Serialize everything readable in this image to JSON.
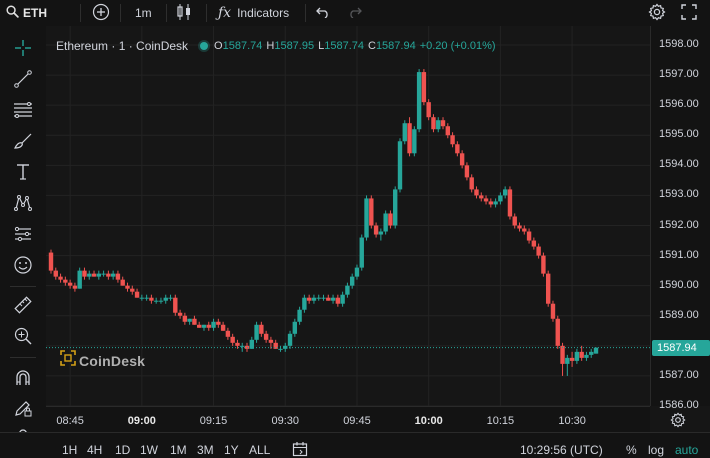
{
  "toolbar": {
    "symbol": "ETH",
    "interval": "1m",
    "indicators_label": "Indicators",
    "icons": [
      "search-icon",
      "add-icon",
      "candle-type-icon",
      "function-icon",
      "undo-icon",
      "redo-icon",
      "settings-icon",
      "fullscreen-icon"
    ]
  },
  "left_tools": [
    "crosshair-icon",
    "trend-line-icon",
    "fib-icon",
    "brush-icon",
    "text-icon",
    "pattern-icon",
    "forecast-icon",
    "emoji-icon",
    "ruler-icon",
    "zoom-in-icon",
    "magnet-icon",
    "lock-drawing-icon",
    "lock-icon"
  ],
  "legend": {
    "title": "Ethereum · 1 · CoinDesk",
    "o_label": "O",
    "o_value": "1587.74",
    "h_label": "H",
    "h_value": "1587.95",
    "l_label": "L",
    "l_value": "1587.74",
    "c_label": "C",
    "c_value": "1587.94",
    "change": "+0.20 (+0.01%)"
  },
  "watermark": {
    "text": "CoinDesk"
  },
  "price_scale": {
    "ticks": [
      "1598.00",
      "1597.00",
      "1596.00",
      "1595.00",
      "1594.00",
      "1593.00",
      "1592.00",
      "1591.00",
      "1590.00",
      "1589.00",
      "1588.00",
      "1587.00",
      "1586.00"
    ],
    "current": "1587.94"
  },
  "time_scale": {
    "ticks": [
      {
        "label": "08:45",
        "bold": false
      },
      {
        "label": "09:00",
        "bold": true
      },
      {
        "label": "09:15",
        "bold": false
      },
      {
        "label": "09:30",
        "bold": false
      },
      {
        "label": "09:45",
        "bold": false
      },
      {
        "label": "10:00",
        "bold": true
      },
      {
        "label": "10:15",
        "bold": false
      },
      {
        "label": "10:30",
        "bold": false
      }
    ]
  },
  "bottom": {
    "ranges": [
      "1H",
      "4H",
      "1D",
      "1W",
      "1M",
      "3M",
      "1Y",
      "ALL"
    ],
    "clock": "10:29:56 (UTC)",
    "percent_label": "%",
    "log_label": "log",
    "auto_label": "auto"
  },
  "colors": {
    "up": "#26a69a",
    "down": "#ef5350",
    "background": "#161616",
    "grid": "#232323"
  },
  "chart_data": {
    "type": "candlestick",
    "title": "Ethereum · 1 · CoinDesk",
    "interval": "1m",
    "x_unit": "time (UTC)",
    "ylim": [
      1585.9,
      1598.3
    ],
    "ohlc": [
      [
        1591.1,
        1591.2,
        1590.4,
        1590.5
      ],
      [
        1590.5,
        1590.6,
        1590.2,
        1590.3
      ],
      [
        1590.3,
        1590.4,
        1590.1,
        1590.2
      ],
      [
        1590.2,
        1590.3,
        1590.0,
        1590.1
      ],
      [
        1590.1,
        1590.2,
        1589.9,
        1590.0
      ],
      [
        1590.0,
        1590.1,
        1589.8,
        1589.9
      ],
      [
        1589.9,
        1590.6,
        1589.9,
        1590.5
      ],
      [
        1590.5,
        1590.6,
        1590.2,
        1590.3
      ],
      [
        1590.3,
        1590.5,
        1590.2,
        1590.4
      ],
      [
        1590.4,
        1590.5,
        1590.3,
        1590.3
      ],
      [
        1590.3,
        1590.5,
        1590.2,
        1590.4
      ],
      [
        1590.4,
        1590.5,
        1590.3,
        1590.4
      ],
      [
        1590.4,
        1590.5,
        1590.2,
        1590.3
      ],
      [
        1590.3,
        1590.5,
        1590.2,
        1590.4
      ],
      [
        1590.4,
        1590.5,
        1590.1,
        1590.2
      ],
      [
        1590.2,
        1590.3,
        1590.0,
        1590.0
      ],
      [
        1590.0,
        1590.1,
        1589.8,
        1589.9
      ],
      [
        1589.9,
        1590.0,
        1589.7,
        1589.8
      ],
      [
        1589.8,
        1589.9,
        1589.6,
        1589.6
      ],
      [
        1589.6,
        1589.7,
        1589.5,
        1589.6
      ],
      [
        1589.6,
        1589.7,
        1589.5,
        1589.6
      ],
      [
        1589.6,
        1589.7,
        1589.4,
        1589.5
      ],
      [
        1589.5,
        1589.6,
        1589.4,
        1589.5
      ],
      [
        1589.5,
        1589.6,
        1589.4,
        1589.5
      ],
      [
        1589.5,
        1589.7,
        1589.4,
        1589.6
      ],
      [
        1589.6,
        1589.7,
        1589.5,
        1589.6
      ],
      [
        1589.6,
        1589.7,
        1589.0,
        1589.1
      ],
      [
        1589.1,
        1589.2,
        1588.9,
        1589.0
      ],
      [
        1589.0,
        1589.1,
        1588.7,
        1588.8
      ],
      [
        1588.8,
        1588.9,
        1588.7,
        1588.9
      ],
      [
        1588.9,
        1589.0,
        1588.7,
        1588.7
      ],
      [
        1588.7,
        1588.8,
        1588.6,
        1588.6
      ],
      [
        1588.6,
        1588.7,
        1588.5,
        1588.7
      ],
      [
        1588.7,
        1588.8,
        1588.5,
        1588.6
      ],
      [
        1588.6,
        1588.9,
        1588.5,
        1588.8
      ],
      [
        1588.8,
        1588.9,
        1588.6,
        1588.7
      ],
      [
        1588.7,
        1588.8,
        1588.5,
        1588.5
      ],
      [
        1588.5,
        1588.6,
        1588.2,
        1588.3
      ],
      [
        1588.3,
        1588.4,
        1588.0,
        1588.1
      ],
      [
        1588.1,
        1588.2,
        1587.9,
        1588.0
      ],
      [
        1588.0,
        1588.1,
        1587.8,
        1588.0
      ],
      [
        1588.0,
        1588.1,
        1587.8,
        1587.9
      ],
      [
        1587.9,
        1588.3,
        1587.9,
        1588.2
      ],
      [
        1588.2,
        1588.8,
        1588.1,
        1588.7
      ],
      [
        1588.7,
        1588.8,
        1588.3,
        1588.4
      ],
      [
        1588.4,
        1588.5,
        1588.1,
        1588.2
      ],
      [
        1588.2,
        1588.3,
        1587.9,
        1588.1
      ],
      [
        1588.1,
        1588.2,
        1587.9,
        1587.9
      ],
      [
        1587.9,
        1588.0,
        1587.8,
        1587.9
      ],
      [
        1587.9,
        1588.1,
        1587.8,
        1588.0
      ],
      [
        1588.0,
        1588.5,
        1587.9,
        1588.4
      ],
      [
        1588.4,
        1588.9,
        1588.3,
        1588.8
      ],
      [
        1588.8,
        1589.3,
        1588.7,
        1589.2
      ],
      [
        1589.2,
        1589.7,
        1589.1,
        1589.6
      ],
      [
        1589.6,
        1589.7,
        1589.4,
        1589.5
      ],
      [
        1589.5,
        1589.7,
        1589.4,
        1589.6
      ],
      [
        1589.6,
        1589.7,
        1589.5,
        1589.6
      ],
      [
        1589.6,
        1589.7,
        1589.5,
        1589.6
      ],
      [
        1589.6,
        1589.7,
        1589.5,
        1589.5
      ],
      [
        1589.5,
        1589.7,
        1589.4,
        1589.6
      ],
      [
        1589.6,
        1589.7,
        1589.3,
        1589.4
      ],
      [
        1589.4,
        1589.8,
        1589.3,
        1589.7
      ],
      [
        1589.7,
        1590.1,
        1589.6,
        1590.0
      ],
      [
        1590.0,
        1590.4,
        1589.9,
        1590.3
      ],
      [
        1590.3,
        1590.7,
        1590.2,
        1590.6
      ],
      [
        1590.6,
        1591.7,
        1590.5,
        1591.6
      ],
      [
        1591.6,
        1593.0,
        1591.5,
        1592.9
      ],
      [
        1592.9,
        1593.0,
        1591.9,
        1592.0
      ],
      [
        1592.0,
        1592.1,
        1591.6,
        1591.7
      ],
      [
        1591.7,
        1591.9,
        1591.5,
        1591.8
      ],
      [
        1591.8,
        1592.5,
        1591.7,
        1592.4
      ],
      [
        1592.4,
        1592.5,
        1591.9,
        1592.0
      ],
      [
        1592.0,
        1593.3,
        1591.9,
        1593.2
      ],
      [
        1593.2,
        1594.9,
        1593.1,
        1594.8
      ],
      [
        1594.8,
        1595.5,
        1594.7,
        1595.4
      ],
      [
        1595.4,
        1595.6,
        1594.3,
        1594.4
      ],
      [
        1594.4,
        1595.3,
        1594.3,
        1595.2
      ],
      [
        1595.2,
        1597.2,
        1595.1,
        1597.1
      ],
      [
        1597.1,
        1597.2,
        1596.0,
        1596.1
      ],
      [
        1596.1,
        1596.2,
        1595.5,
        1595.6
      ],
      [
        1595.6,
        1595.7,
        1595.1,
        1595.2
      ],
      [
        1595.2,
        1595.6,
        1595.1,
        1595.5
      ],
      [
        1595.5,
        1595.6,
        1595.2,
        1595.3
      ],
      [
        1595.3,
        1595.4,
        1594.9,
        1595.0
      ],
      [
        1595.0,
        1595.1,
        1594.6,
        1594.7
      ],
      [
        1594.7,
        1594.8,
        1594.3,
        1594.4
      ],
      [
        1594.4,
        1594.5,
        1593.9,
        1594.0
      ],
      [
        1594.0,
        1594.1,
        1593.5,
        1593.6
      ],
      [
        1593.6,
        1593.7,
        1593.1,
        1593.2
      ],
      [
        1593.2,
        1593.3,
        1592.9,
        1593.0
      ],
      [
        1593.0,
        1593.1,
        1592.8,
        1592.9
      ],
      [
        1592.9,
        1593.0,
        1592.7,
        1592.8
      ],
      [
        1592.8,
        1592.9,
        1592.6,
        1592.7
      ],
      [
        1592.7,
        1592.9,
        1592.6,
        1592.8
      ],
      [
        1592.8,
        1593.1,
        1592.7,
        1593.0
      ],
      [
        1593.0,
        1593.3,
        1592.9,
        1593.2
      ],
      [
        1593.2,
        1593.3,
        1592.2,
        1592.3
      ],
      [
        1592.3,
        1592.4,
        1591.9,
        1592.0
      ],
      [
        1592.0,
        1592.1,
        1591.8,
        1591.9
      ],
      [
        1591.9,
        1592.0,
        1591.7,
        1591.8
      ],
      [
        1591.8,
        1591.9,
        1591.4,
        1591.5
      ],
      [
        1591.5,
        1591.6,
        1591.2,
        1591.3
      ],
      [
        1591.3,
        1591.4,
        1590.9,
        1591.0
      ],
      [
        1591.0,
        1591.1,
        1590.3,
        1590.4
      ],
      [
        1590.4,
        1590.5,
        1589.3,
        1589.4
      ],
      [
        1589.4,
        1589.5,
        1588.8,
        1588.9
      ],
      [
        1588.9,
        1589.0,
        1587.9,
        1588.0
      ],
      [
        1588.0,
        1588.1,
        1587.0,
        1587.4
      ],
      [
        1587.4,
        1587.7,
        1587.0,
        1587.6
      ],
      [
        1587.6,
        1587.8,
        1587.3,
        1587.5
      ],
      [
        1587.5,
        1587.9,
        1587.4,
        1587.8
      ],
      [
        1587.8,
        1588.0,
        1587.5,
        1587.6
      ],
      [
        1587.6,
        1587.8,
        1587.5,
        1587.7
      ],
      [
        1587.7,
        1587.9,
        1587.6,
        1587.8
      ],
      [
        1587.74,
        1587.95,
        1587.74,
        1587.94
      ]
    ]
  }
}
